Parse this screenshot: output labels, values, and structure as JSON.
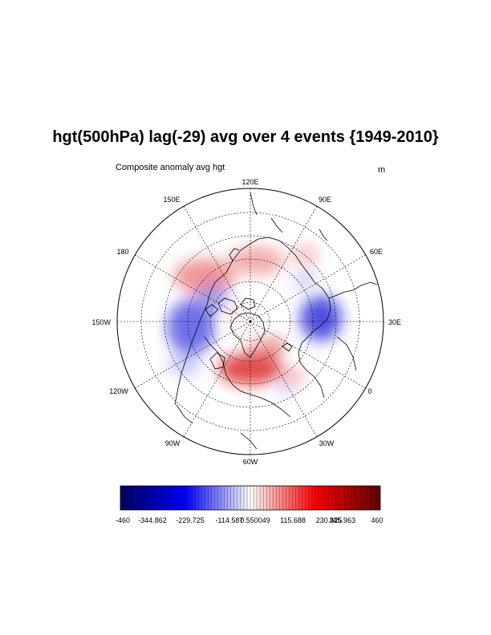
{
  "title": "hgt(500hPa) lag(-29) avg over 4 events {1949-2010}",
  "subtitle": "Composite anomaly avg hgt",
  "units": "m",
  "map": {
    "projection": "north polar stereographic",
    "lon_labels": [
      "120E",
      "90E",
      "60E",
      "30E",
      "0",
      "30W",
      "60W",
      "90W",
      "120W",
      "150W",
      "180",
      "150E"
    ],
    "gridlines": "dashed",
    "anomaly_features": [
      {
        "sign": "negative",
        "region": "western Europe / North Atlantic east"
      },
      {
        "sign": "positive",
        "region": "south of Greenland / North Atlantic"
      },
      {
        "sign": "negative",
        "region": "western North America / NE Pacific"
      },
      {
        "sign": "positive",
        "region": "northern Pacific / Siberia ring"
      }
    ]
  },
  "colorbar": {
    "colors": {
      "min": "#000064",
      "mid": "#ffffff",
      "max": "#640000"
    },
    "labels": [
      "-460",
      "-344.862",
      "-229.725",
      "-114.587",
      "0.550049",
      "115.688",
      "230.825",
      "345.963",
      "460"
    ],
    "range": [
      -460,
      460
    ]
  }
}
